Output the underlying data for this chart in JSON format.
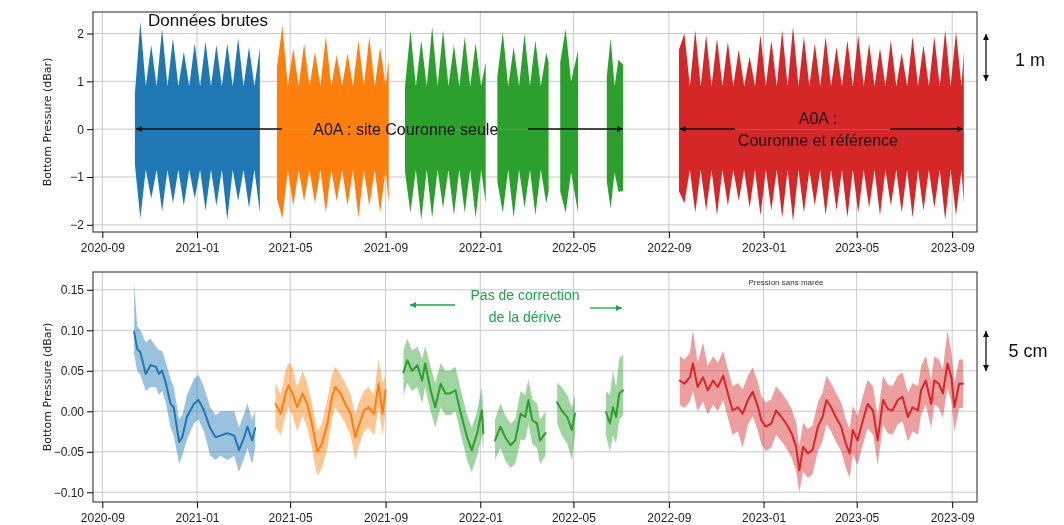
{
  "chart_data": [
    {
      "type": "area",
      "title": "Données brutes",
      "ylabel": "Bottom Pressure (dBar)",
      "xlim": [
        "2020-08-20",
        "2023-10-03"
      ],
      "xticks": [
        "2020-09",
        "2021-01",
        "2021-05",
        "2021-09",
        "2022-01",
        "2022-05",
        "2022-09",
        "2023-01",
        "2023-05",
        "2023-09"
      ],
      "ylim": [
        -2.15,
        2.45
      ],
      "yticks": [
        -2,
        -1,
        0,
        1,
        2
      ],
      "grid": true,
      "annotations": [
        {
          "text": "A0A : site Couronne seule",
          "x": "2021-09-27",
          "y": 0
        },
        {
          "text": "A0A :\nCouronne et référence",
          "x": "2023-03-12",
          "y": 0
        },
        "1 m"
      ],
      "series": [
        {
          "color": "#1f77b4",
          "x": [
            "2020-10-13",
            "2020-10-20",
            "2020-10-27",
            "2020-11-03",
            "2020-11-10",
            "2020-11-17",
            "2020-11-24",
            "2020-12-01",
            "2020-12-08",
            "2020-12-15",
            "2020-12-22",
            "2020-12-29",
            "2021-01-05",
            "2021-01-12",
            "2021-01-19",
            "2021-01-26",
            "2021-02-02",
            "2021-02-09",
            "2021-02-16",
            "2021-02-23",
            "2021-03-02",
            "2021-03-09",
            "2021-03-16",
            "2021-03-23"
          ],
          "values": [
            0.75,
            2.24,
            0.9,
            1.76,
            0.9,
            2.1,
            0.9,
            1.9,
            0.9,
            1.62,
            0.9,
            1.79,
            0.9,
            1.83,
            0.9,
            1.76,
            0.9,
            1.79,
            0.9,
            1.9,
            0.9,
            1.72,
            0.9,
            1.69
          ]
        },
        {
          "color": "#1f77b4",
          "x": [
            "2020-10-13",
            "2020-10-20",
            "2020-10-27",
            "2020-11-03",
            "2020-11-10",
            "2020-11-17",
            "2020-11-24",
            "2020-12-01",
            "2020-12-08",
            "2020-12-15",
            "2020-12-22",
            "2020-12-29",
            "2021-01-05",
            "2021-01-12",
            "2021-01-19",
            "2021-01-26",
            "2021-02-02",
            "2021-02-09",
            "2021-02-16",
            "2021-02-23",
            "2021-03-02",
            "2021-03-09",
            "2021-03-16",
            "2021-03-23"
          ],
          "values": [
            -0.75,
            -1.86,
            -0.85,
            -1.45,
            -0.85,
            -1.72,
            -0.85,
            -1.55,
            -0.85,
            -1.6,
            -0.85,
            -1.45,
            -0.85,
            -1.7,
            -0.85,
            -1.6,
            -0.85,
            -1.9,
            -0.85,
            -1.5,
            -0.85,
            -1.65,
            -0.85,
            -1.75
          ]
        },
        {
          "color": "#ff7f0e",
          "x": [
            "2021-04-14",
            "2021-04-21",
            "2021-04-28",
            "2021-05-05",
            "2021-05-12",
            "2021-05-19",
            "2021-05-26",
            "2021-06-02",
            "2021-06-09",
            "2021-06-16",
            "2021-06-23",
            "2021-06-30",
            "2021-07-07",
            "2021-07-14",
            "2021-07-21",
            "2021-07-28",
            "2021-08-04",
            "2021-08-11",
            "2021-08-18",
            "2021-08-25",
            "2021-09-01",
            "2021-09-05"
          ],
          "values": [
            1.3,
            2.17,
            0.9,
            1.69,
            0.9,
            1.79,
            0.9,
            1.62,
            0.9,
            1.93,
            0.9,
            1.55,
            0.9,
            1.59,
            0.9,
            1.86,
            0.9,
            1.93,
            0.9,
            1.72,
            0.9,
            1.45
          ]
        },
        {
          "color": "#ff7f0e",
          "x": [
            "2021-04-14",
            "2021-04-21",
            "2021-04-28",
            "2021-05-05",
            "2021-05-12",
            "2021-05-19",
            "2021-05-26",
            "2021-06-02",
            "2021-06-09",
            "2021-06-16",
            "2021-06-23",
            "2021-06-30",
            "2021-07-07",
            "2021-07-14",
            "2021-07-21",
            "2021-07-28",
            "2021-08-04",
            "2021-08-11",
            "2021-08-18",
            "2021-08-25",
            "2021-09-01",
            "2021-09-05"
          ],
          "values": [
            -1.45,
            -1.86,
            -0.85,
            -1.6,
            -0.85,
            -1.5,
            -0.85,
            -1.55,
            -0.85,
            -1.75,
            -0.85,
            -1.5,
            -0.85,
            -1.6,
            -0.85,
            -1.85,
            -0.85,
            -1.6,
            -0.85,
            -1.75,
            -0.85,
            -1.55
          ]
        },
        {
          "color": "#2ca02c",
          "x": [
            "2021-09-26",
            "2021-10-03",
            "2021-10-10",
            "2021-10-17",
            "2021-10-24",
            "2021-10-31",
            "2021-11-07",
            "2021-11-14",
            "2021-11-21",
            "2021-11-28",
            "2021-12-05",
            "2021-12-12",
            "2021-12-19",
            "2021-12-26",
            "2022-01-02",
            "2022-01-08",
            "2022-01-15",
            "2022-01-23",
            "2022-01-30",
            "2022-02-06",
            "2022-02-13",
            "2022-02-20",
            "2022-02-27",
            "2022-03-06",
            "2022-03-13",
            "2022-03-20",
            "2022-03-27",
            "2022-03-30",
            "2022-04-07",
            "2022-04-14",
            "2022-04-21",
            "2022-04-28",
            "2022-05-07",
            "2022-05-25",
            "2022-06-13",
            "2022-06-18",
            "2022-06-23",
            "2022-06-28",
            "2022-07-04"
          ],
          "values": [
            0.9,
            2.07,
            0.9,
            1.86,
            0.9,
            2.14,
            0.9,
            2.07,
            0.9,
            1.76,
            0.9,
            1.93,
            0.9,
            1.8,
            0.9,
            1.4,
            null,
            1.1,
            2.03,
            0.9,
            1.72,
            0.9,
            2.0,
            0.9,
            1.86,
            0.9,
            1.6,
            1.4,
            null,
            1.4,
            2.1,
            1.0,
            1.65,
            null,
            1.1,
            1.9,
            0.9,
            1.45,
            1.35
          ]
        },
        {
          "color": "#2ca02c",
          "x": [
            "2021-09-26",
            "2021-10-03",
            "2021-10-10",
            "2021-10-17",
            "2021-10-24",
            "2021-10-31",
            "2021-11-07",
            "2021-11-14",
            "2021-11-21",
            "2021-11-28",
            "2021-12-05",
            "2021-12-12",
            "2021-12-19",
            "2021-12-26",
            "2022-01-02",
            "2022-01-08",
            "2022-01-15",
            "2022-01-23",
            "2022-01-30",
            "2022-02-06",
            "2022-02-13",
            "2022-02-20",
            "2022-02-27",
            "2022-03-06",
            "2022-03-13",
            "2022-03-20",
            "2022-03-27",
            "2022-03-30",
            "2022-04-07",
            "2022-04-14",
            "2022-04-21",
            "2022-04-28",
            "2022-05-07",
            "2022-05-25",
            "2022-06-13",
            "2022-06-18",
            "2022-06-23",
            "2022-06-28",
            "2022-07-04"
          ],
          "values": [
            -0.9,
            -1.75,
            -0.85,
            -1.9,
            -0.85,
            -1.85,
            -0.85,
            -1.65,
            -0.85,
            -1.8,
            -0.85,
            -1.75,
            -0.85,
            -1.85,
            -0.85,
            -1.55,
            null,
            -1.1,
            -1.75,
            -0.85,
            -1.85,
            -0.85,
            -1.65,
            -0.85,
            -1.8,
            -0.85,
            -1.55,
            -1.3,
            null,
            -1.3,
            -1.75,
            -0.9,
            -1.75,
            null,
            -1.1,
            -1.66,
            -0.9,
            -1.31,
            -1.3
          ]
        },
        {
          "color": "#d62728",
          "x": [
            "2022-09-14",
            "2022-09-21",
            "2022-09-28",
            "2022-10-05",
            "2022-10-12",
            "2022-10-19",
            "2022-10-26",
            "2022-11-02",
            "2022-11-09",
            "2022-11-16",
            "2022-11-23",
            "2022-11-30",
            "2022-12-07",
            "2022-12-14",
            "2022-12-21",
            "2022-12-28",
            "2023-01-04",
            "2023-01-11",
            "2023-01-18",
            "2023-01-25",
            "2023-02-01",
            "2023-02-08",
            "2023-02-15",
            "2023-02-22",
            "2023-03-01",
            "2023-03-08",
            "2023-03-15",
            "2023-03-22",
            "2023-03-29",
            "2023-04-05",
            "2023-04-12",
            "2023-04-19",
            "2023-04-26",
            "2023-05-03",
            "2023-05-10",
            "2023-05-17",
            "2023-05-24",
            "2023-05-31",
            "2023-06-07",
            "2023-06-14",
            "2023-06-21",
            "2023-06-28",
            "2023-07-05",
            "2023-07-12",
            "2023-07-19",
            "2023-07-26",
            "2023-08-02",
            "2023-08-09",
            "2023-08-16",
            "2023-08-23",
            "2023-08-30",
            "2023-09-06",
            "2023-09-13",
            "2023-09-16"
          ],
          "values": [
            1.66,
            2.0,
            0.9,
            2.07,
            0.9,
            1.97,
            0.9,
            1.9,
            0.9,
            1.83,
            0.9,
            1.66,
            0.9,
            1.52,
            0.9,
            1.97,
            0.9,
            1.86,
            0.9,
            2.07,
            0.9,
            2.14,
            0.9,
            1.93,
            0.9,
            1.79,
            0.9,
            1.93,
            0.9,
            1.72,
            0.9,
            1.86,
            0.9,
            1.97,
            0.9,
            1.79,
            0.9,
            1.69,
            0.9,
            1.86,
            0.9,
            1.59,
            0.9,
            1.93,
            0.9,
            1.76,
            0.9,
            1.93,
            0.9,
            2.07,
            0.9,
            2.03,
            0.9,
            1.62
          ]
        },
        {
          "color": "#d62728",
          "x": [
            "2022-09-14",
            "2022-09-21",
            "2022-09-28",
            "2022-10-05",
            "2022-10-12",
            "2022-10-19",
            "2022-10-26",
            "2022-11-02",
            "2022-11-09",
            "2022-11-16",
            "2022-11-23",
            "2022-11-30",
            "2022-12-07",
            "2022-12-14",
            "2022-12-21",
            "2022-12-28",
            "2023-01-04",
            "2023-01-11",
            "2023-01-18",
            "2023-01-25",
            "2023-02-01",
            "2023-02-08",
            "2023-02-15",
            "2023-02-22",
            "2023-03-01",
            "2023-03-08",
            "2023-03-15",
            "2023-03-22",
            "2023-03-29",
            "2023-04-05",
            "2023-04-12",
            "2023-04-19",
            "2023-04-26",
            "2023-05-03",
            "2023-05-10",
            "2023-05-17",
            "2023-05-24",
            "2023-05-31",
            "2023-06-07",
            "2023-06-14",
            "2023-06-21",
            "2023-06-28",
            "2023-07-05",
            "2023-07-12",
            "2023-07-19",
            "2023-07-26",
            "2023-08-02",
            "2023-08-09",
            "2023-08-16",
            "2023-08-23",
            "2023-08-30",
            "2023-09-06",
            "2023-09-13",
            "2023-09-16"
          ],
          "values": [
            -1.3,
            -1.55,
            -0.85,
            -1.75,
            -0.85,
            -1.7,
            -0.85,
            -1.8,
            -0.85,
            -1.6,
            -0.85,
            -1.5,
            -0.85,
            -1.65,
            -0.85,
            -1.8,
            -0.85,
            -1.7,
            -0.85,
            -1.85,
            -0.85,
            -1.93,
            -0.85,
            -1.75,
            -0.85,
            -1.6,
            -0.85,
            -1.8,
            -0.85,
            -1.7,
            -0.85,
            -1.85,
            -0.85,
            -1.75,
            -0.85,
            -1.65,
            -0.85,
            -1.8,
            -0.85,
            -1.6,
            -0.85,
            -1.75,
            -0.85,
            -1.85,
            -0.85,
            -1.7,
            -0.85,
            -1.65,
            -0.85,
            -1.9,
            -0.85,
            -1.8,
            -0.85,
            -1.55
          ]
        }
      ]
    },
    {
      "type": "line",
      "title": "Pression sans marée",
      "ylabel": "Bottom Pressure (dBar)",
      "xlim": [
        "2020-08-20",
        "2023-10-03"
      ],
      "xticks": [
        "2020-09",
        "2021-01",
        "2021-05",
        "2021-09",
        "2022-01",
        "2022-05",
        "2022-09",
        "2023-01",
        "2023-05",
        "2023-09"
      ],
      "ylim": [
        -0.112,
        0.172
      ],
      "yticks": [
        {
          "value": -0.1,
          "label": "−0.10"
        },
        {
          "value": -0.05,
          "label": "−0.05"
        },
        {
          "value": 0,
          "label": "0.00"
        },
        {
          "value": 0.05,
          "label": "0.05"
        },
        {
          "value": 0.1,
          "label": "0.10"
        },
        {
          "value": 0.15,
          "label": "0.15"
        }
      ],
      "grid": true,
      "annotations": [
        "Pas de correction\nde la dérive",
        "5 cm"
      ],
      "series": [
        {
          "color": "#1f77b4",
          "x": [
            "2020-10-12",
            "2020-10-16",
            "2020-10-20",
            "2020-10-27",
            "2020-11-02",
            "2020-11-09",
            "2020-11-13",
            "2020-11-17",
            "2020-11-22",
            "2020-11-28",
            "2020-12-02",
            "2020-12-09",
            "2020-12-13",
            "2020-12-19",
            "2020-12-28",
            "2021-01-03",
            "2021-01-10",
            "2021-01-18",
            "2021-01-25",
            "2021-01-31",
            "2021-02-09",
            "2021-02-18",
            "2021-02-24",
            "2021-03-02",
            "2021-03-07",
            "2021-03-13",
            "2021-03-17"
          ],
          "values": [
            0.098,
            0.077,
            0.073,
            0.046,
            0.057,
            0.055,
            0.046,
            0.05,
            0.034,
            0.009,
            0.005,
            -0.038,
            -0.032,
            -0.007,
            0.009,
            0.014,
            0.001,
            -0.021,
            -0.032,
            -0.03,
            -0.027,
            -0.03,
            -0.048,
            -0.034,
            -0.019,
            -0.036,
            -0.021
          ],
          "upper": [
            0.159,
            0.105,
            0.1,
            0.085,
            0.09,
            0.08,
            0.075,
            0.075,
            0.06,
            0.04,
            0.03,
            -0.01,
            -0.005,
            0.02,
            0.04,
            0.045,
            0.03,
            0.005,
            -0.005,
            0.0,
            0.0,
            0.0,
            -0.02,
            -0.005,
            0.01,
            -0.01,
            0.0
          ],
          "lower": [
            0.07,
            0.05,
            0.045,
            0.025,
            0.03,
            0.03,
            0.02,
            0.025,
            0.01,
            -0.02,
            -0.03,
            -0.065,
            -0.055,
            -0.035,
            -0.015,
            -0.01,
            -0.025,
            -0.055,
            -0.06,
            -0.055,
            -0.06,
            -0.055,
            -0.075,
            -0.06,
            -0.045,
            -0.065,
            -0.045
          ]
        },
        {
          "color": "#ff7f0e",
          "x": [
            "2021-04-12",
            "2021-04-19",
            "2021-04-25",
            "2021-04-29",
            "2021-05-04",
            "2021-05-10",
            "2021-05-17",
            "2021-05-23",
            "2021-05-29",
            "2021-06-05",
            "2021-06-11",
            "2021-06-18",
            "2021-06-24",
            "2021-06-28",
            "2021-07-05",
            "2021-07-11",
            "2021-07-18",
            "2021-07-24",
            "2021-07-28",
            "2021-08-04",
            "2021-08-10",
            "2021-08-17",
            "2021-08-23",
            "2021-08-28",
            "2021-09-01"
          ],
          "values": [
            0.009,
            -0.003,
            0.022,
            0.032,
            0.022,
            0.005,
            0.022,
            0.009,
            -0.015,
            -0.05,
            -0.04,
            -0.015,
            0.018,
            0.03,
            0.022,
            0.009,
            -0.003,
            -0.032,
            -0.019,
            0.001,
            0.005,
            -0.003,
            0.034,
            -0.003,
            0.026
          ],
          "upper": [
            0.035,
            0.02,
            0.05,
            0.06,
            0.055,
            0.03,
            0.05,
            0.035,
            0.01,
            -0.025,
            -0.015,
            0.015,
            0.045,
            0.055,
            0.045,
            0.035,
            0.02,
            -0.005,
            0.01,
            0.025,
            0.03,
            0.02,
            0.065,
            0.035,
            0.045
          ],
          "lower": [
            -0.02,
            -0.03,
            -0.005,
            0.005,
            -0.005,
            -0.025,
            -0.005,
            -0.02,
            -0.045,
            -0.08,
            -0.07,
            -0.045,
            -0.01,
            0.005,
            -0.005,
            -0.015,
            -0.03,
            -0.06,
            -0.045,
            -0.025,
            -0.02,
            -0.03,
            0.005,
            -0.03,
            0.0
          ]
        },
        {
          "color": "#2ca02c",
          "x": [
            "2021-09-24",
            "2021-09-29",
            "2021-10-05",
            "2021-10-12",
            "2021-10-18",
            "2021-10-22",
            "2021-10-29",
            "2021-11-04",
            "2021-11-11",
            "2021-11-17",
            "2021-11-23",
            "2021-11-30",
            "2021-12-06",
            "2021-12-15",
            "2021-12-21",
            "2021-12-28",
            "2022-01-03",
            "2022-01-05",
            "2022-01-12",
            "2022-01-20",
            "2022-01-27",
            "2022-02-02",
            "2022-02-09",
            "2022-02-15",
            "2022-02-22",
            "2022-02-28",
            "2022-03-04",
            "2022-03-09",
            "2022-03-15",
            "2022-03-19",
            "2022-03-26",
            "2022-04-03",
            "2022-04-10",
            "2022-04-16",
            "2022-04-23",
            "2022-04-29",
            "2022-05-03",
            "2022-05-25",
            "2022-06-12",
            "2022-06-17",
            "2022-06-21",
            "2022-06-25",
            "2022-06-29",
            "2022-07-04"
          ],
          "values": [
            0.048,
            0.063,
            0.05,
            0.057,
            0.038,
            0.059,
            0.026,
            0.005,
            0.034,
            0.022,
            0.022,
            0.026,
            0.001,
            -0.032,
            -0.048,
            -0.027,
            0.001,
            -0.027,
            null,
            -0.036,
            -0.019,
            -0.032,
            -0.042,
            -0.036,
            -0.003,
            -0.007,
            0.014,
            -0.011,
            -0.015,
            -0.036,
            -0.027,
            null,
            0.011,
            0.001,
            -0.007,
            -0.023,
            -0.003,
            null,
            -0.001,
            -0.015,
            0.005,
            -0.007,
            0.022,
            0.026
          ],
          "upper": [
            0.075,
            0.09,
            0.075,
            0.08,
            0.065,
            0.08,
            0.055,
            0.035,
            0.06,
            0.05,
            0.05,
            0.055,
            0.03,
            -0.005,
            -0.02,
            0.0,
            0.03,
            0.0,
            null,
            -0.01,
            0.01,
            -0.005,
            -0.015,
            -0.01,
            0.025,
            0.02,
            0.04,
            0.015,
            0.01,
            -0.01,
            0.0,
            null,
            0.035,
            0.03,
            0.02,
            0.005,
            0.02,
            null,
            0.025,
            0.02,
            0.05,
            0.03,
            0.065,
            0.07
          ],
          "lower": [
            0.02,
            0.035,
            0.025,
            0.03,
            0.01,
            0.03,
            0.0,
            -0.02,
            0.005,
            -0.005,
            -0.005,
            0.0,
            -0.025,
            -0.06,
            -0.075,
            -0.055,
            -0.03,
            -0.05,
            null,
            -0.06,
            -0.045,
            -0.06,
            -0.07,
            -0.065,
            -0.035,
            -0.035,
            -0.015,
            -0.04,
            -0.045,
            -0.065,
            -0.055,
            null,
            -0.015,
            -0.03,
            -0.04,
            -0.06,
            -0.03,
            null,
            -0.03,
            -0.05,
            -0.03,
            -0.04,
            -0.01,
            -0.005
          ]
        },
        {
          "color": "#d62728",
          "x": [
            "2022-09-15",
            "2022-09-21",
            "2022-09-28",
            "2022-10-02",
            "2022-10-08",
            "2022-10-15",
            "2022-10-21",
            "2022-10-28",
            "2022-11-03",
            "2022-11-10",
            "2022-11-16",
            "2022-11-22",
            "2022-11-29",
            "2022-12-05",
            "2022-12-12",
            "2022-12-18",
            "2022-12-25",
            "2022-12-29",
            "2023-01-04",
            "2023-01-11",
            "2023-01-17",
            "2023-01-24",
            "2023-01-30",
            "2023-02-06",
            "2023-02-12",
            "2023-02-16",
            "2023-02-21",
            "2023-02-27",
            "2023-03-05",
            "2023-03-12",
            "2023-03-18",
            "2023-03-23",
            "2023-03-29",
            "2023-04-04",
            "2023-04-11",
            "2023-04-17",
            "2023-04-22",
            "2023-04-26",
            "2023-05-02",
            "2023-05-09",
            "2023-05-15",
            "2023-05-22",
            "2023-05-28",
            "2023-06-04",
            "2023-06-10",
            "2023-06-16",
            "2023-06-23",
            "2023-06-29",
            "2023-07-06",
            "2023-07-12",
            "2023-07-19",
            "2023-07-23",
            "2023-07-29",
            "2023-08-05",
            "2023-08-09",
            "2023-08-15",
            "2023-08-20",
            "2023-08-26",
            "2023-08-31",
            "2023-09-04",
            "2023-09-10",
            "2023-09-15"
          ],
          "values": [
            0.038,
            0.034,
            0.042,
            0.059,
            0.03,
            0.042,
            0.026,
            0.038,
            0.03,
            0.044,
            0.022,
            0.001,
            0.005,
            -0.003,
            0.014,
            0.024,
            0.005,
            -0.011,
            -0.019,
            -0.015,
            0.001,
            -0.007,
            -0.015,
            -0.027,
            -0.044,
            -0.073,
            -0.044,
            -0.052,
            -0.048,
            -0.019,
            -0.007,
            0.014,
            0.005,
            -0.007,
            -0.019,
            -0.04,
            -0.052,
            -0.023,
            -0.036,
            -0.011,
            0.009,
            0.001,
            -0.036,
            0.014,
            0.003,
            0.001,
            0.014,
            0.018,
            -0.007,
            0.005,
            0.001,
            0.026,
            0.038,
            0.009,
            0.038,
            0.034,
            0.022,
            0.059,
            0.042,
            0.005,
            0.034,
            0.034
          ],
          "upper": [
            0.068,
            0.064,
            0.072,
            0.1,
            0.06,
            0.085,
            0.056,
            0.068,
            0.06,
            0.074,
            0.052,
            0.031,
            0.035,
            0.027,
            0.044,
            0.054,
            0.035,
            0.019,
            0.011,
            0.015,
            0.031,
            0.023,
            0.015,
            0.003,
            -0.014,
            -0.043,
            -0.014,
            -0.022,
            -0.018,
            0.011,
            0.023,
            0.044,
            0.035,
            0.023,
            0.011,
            -0.01,
            -0.022,
            0.007,
            -0.006,
            0.019,
            0.039,
            0.031,
            -0.006,
            0.044,
            0.033,
            0.031,
            0.044,
            0.048,
            0.023,
            0.035,
            0.031,
            0.056,
            0.068,
            0.039,
            0.068,
            0.064,
            0.052,
            0.1,
            0.072,
            0.035,
            0.064,
            0.064
          ],
          "lower": [
            0.008,
            0.004,
            0.012,
            0.025,
            0.0,
            0.012,
            -0.004,
            0.008,
            0.0,
            0.014,
            -0.008,
            -0.029,
            -0.025,
            -0.045,
            -0.016,
            -0.006,
            -0.025,
            -0.041,
            -0.049,
            -0.045,
            -0.029,
            -0.037,
            -0.045,
            -0.057,
            -0.074,
            -0.1,
            -0.074,
            -0.082,
            -0.078,
            -0.049,
            -0.037,
            -0.016,
            -0.025,
            -0.037,
            -0.049,
            -0.07,
            -0.082,
            -0.053,
            -0.066,
            -0.041,
            -0.021,
            -0.029,
            -0.066,
            -0.016,
            -0.027,
            -0.029,
            -0.016,
            -0.012,
            -0.037,
            -0.025,
            -0.029,
            -0.004,
            0.008,
            -0.021,
            0.008,
            0.004,
            -0.008,
            0.029,
            0.012,
            -0.025,
            0.004,
            0.004
          ]
        }
      ]
    }
  ]
}
